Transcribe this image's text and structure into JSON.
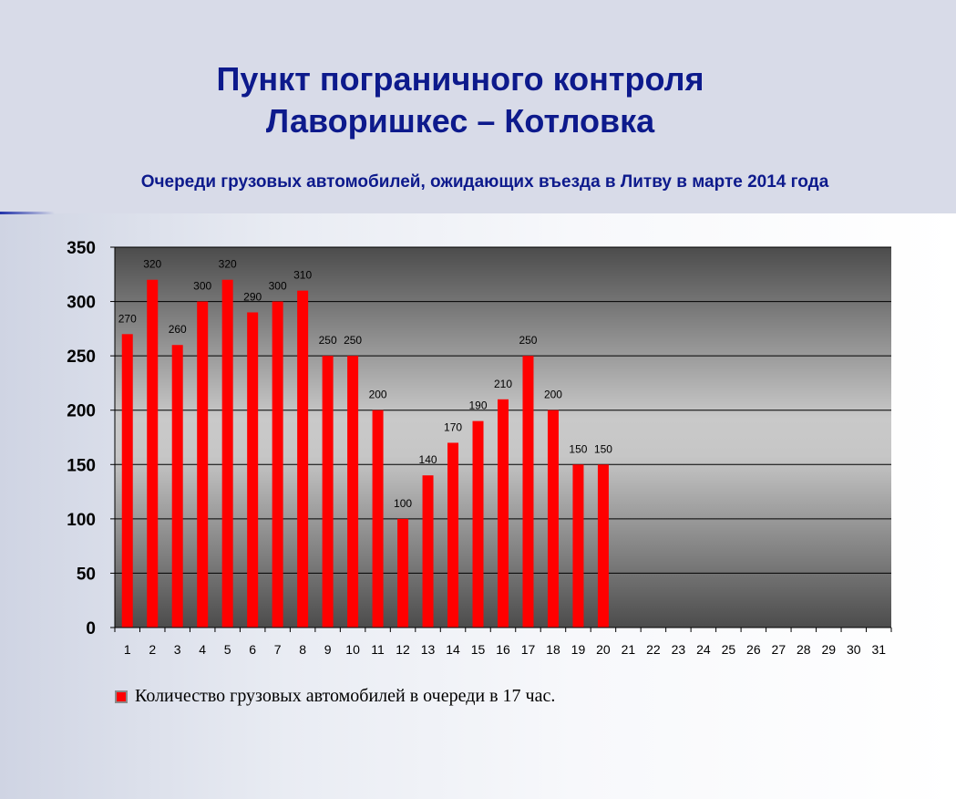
{
  "header": {
    "title_line1": "Пункт пограничного контроля",
    "title_line2": "Лаворишкес – Котловка",
    "subtitle": "Очереди грузовых автомобилей, ожидающих въезда в Литву в марте 2014 года"
  },
  "colors": {
    "bar": "#ff0000",
    "title": "#0d1a8c"
  },
  "chart_data": {
    "type": "bar",
    "title": "",
    "xlabel": "",
    "ylabel": "",
    "ylim": [
      0,
      350
    ],
    "yticks": [
      0,
      50,
      100,
      150,
      200,
      250,
      300,
      350
    ],
    "grid": true,
    "legend_position": "bottom-left",
    "categories": [
      "1",
      "2",
      "3",
      "4",
      "5",
      "6",
      "7",
      "8",
      "9",
      "10",
      "11",
      "12",
      "13",
      "14",
      "15",
      "16",
      "17",
      "18",
      "19",
      "20",
      "21",
      "22",
      "23",
      "24",
      "25",
      "26",
      "27",
      "28",
      "29",
      "30",
      "31"
    ],
    "series": [
      {
        "name": "Количество грузовых автомобилей в очереди в 17 час.",
        "values": [
          270,
          320,
          260,
          300,
          320,
          290,
          300,
          310,
          250,
          250,
          200,
          100,
          140,
          170,
          190,
          210,
          250,
          200,
          150,
          150,
          null,
          null,
          null,
          null,
          null,
          null,
          null,
          null,
          null,
          null,
          null
        ]
      }
    ]
  }
}
